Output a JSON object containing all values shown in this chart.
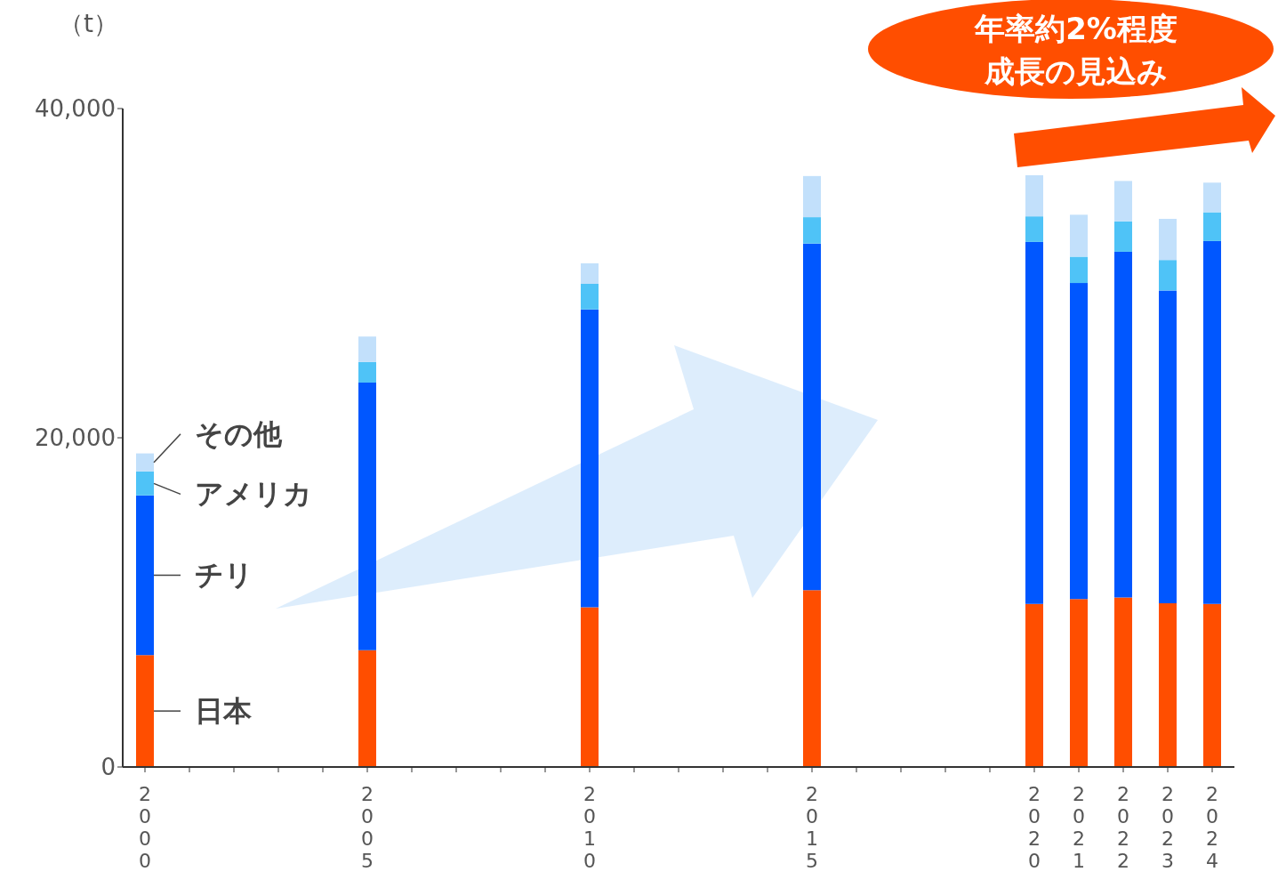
{
  "chart_data": {
    "type": "bar",
    "stacked": true,
    "ylabel": "（t）",
    "categories": [
      "2000",
      null,
      null,
      null,
      null,
      "2005",
      null,
      null,
      null,
      null,
      "2010",
      null,
      null,
      null,
      null,
      "2015",
      null,
      null,
      null,
      null,
      "2020",
      "2021",
      "2022",
      "2023",
      "2024"
    ],
    "series": [
      {
        "name": "日本",
        "color": "#ff4e00",
        "values": [
          6800,
          null,
          null,
          null,
          null,
          7100,
          null,
          null,
          null,
          null,
          9700,
          null,
          null,
          null,
          null,
          10750,
          null,
          null,
          null,
          null,
          9900,
          10200,
          10300,
          9950,
          9900
        ]
      },
      {
        "name": "チリ",
        "color": "#0057ff",
        "values": [
          9700,
          null,
          null,
          null,
          null,
          16250,
          null,
          null,
          null,
          null,
          18100,
          null,
          null,
          null,
          null,
          21050,
          null,
          null,
          null,
          null,
          22000,
          19200,
          21000,
          19000,
          22050
        ]
      },
      {
        "name": "アメリカ",
        "color": "#4fc3f7",
        "values": [
          1450,
          null,
          null,
          null,
          null,
          1250,
          null,
          null,
          null,
          null,
          1550,
          null,
          null,
          null,
          null,
          1600,
          null,
          null,
          null,
          null,
          1550,
          1600,
          1850,
          1850,
          1750
        ]
      },
      {
        "name": "その他",
        "color": "#c2e0fb",
        "values": [
          1100,
          null,
          null,
          null,
          null,
          1550,
          null,
          null,
          null,
          null,
          1250,
          null,
          null,
          null,
          null,
          2500,
          null,
          null,
          null,
          null,
          2500,
          2550,
          2450,
          2500,
          1800
        ]
      }
    ],
    "ylim": [
      0,
      40000
    ],
    "yticks": [
      0,
      {
        "value": 20000,
        "label": "20,000"
      },
      {
        "value": 40000,
        "label": "40,000"
      }
    ],
    "grid": false,
    "annotations": [
      "年率約2%程度",
      "成長の見込み"
    ]
  }
}
